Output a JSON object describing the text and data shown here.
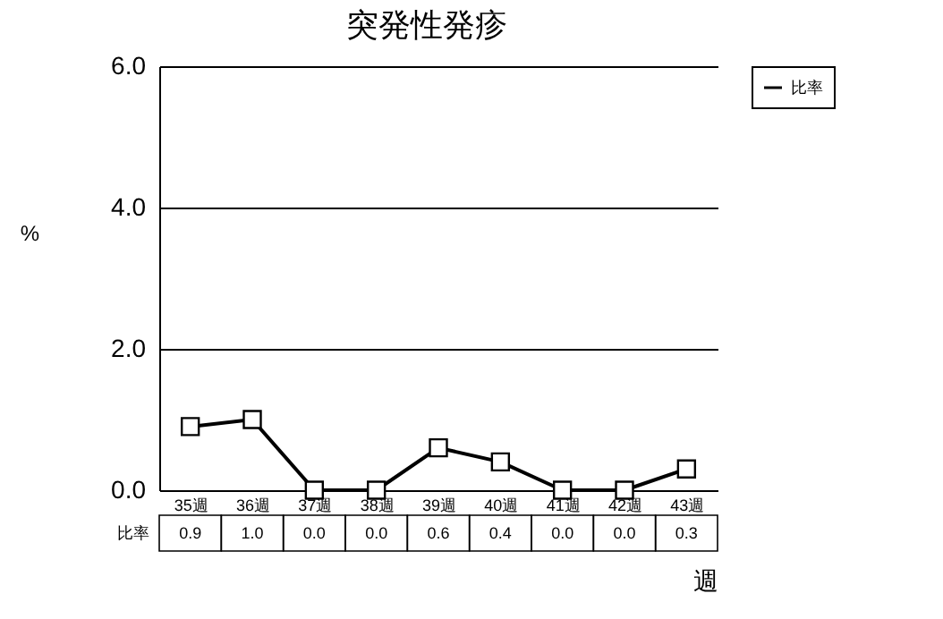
{
  "chart_data": {
    "type": "line",
    "title": "突発性発疹",
    "ylabel": "%",
    "xlabel": "週",
    "categories": [
      "35週",
      "36週",
      "37週",
      "38週",
      "39週",
      "40週",
      "41週",
      "42週",
      "43週"
    ],
    "series": [
      {
        "name": "比率",
        "color": "#000000",
        "values": [
          0.9,
          1.0,
          0.0,
          0.0,
          0.6,
          0.4,
          0.0,
          0.0,
          0.3
        ],
        "value_labels": [
          "0.9",
          "1.0",
          "0.0",
          "0.0",
          "0.6",
          "0.4",
          "0.0",
          "0.0",
          "0.3"
        ]
      }
    ],
    "ylim": [
      0,
      6
    ],
    "yticks": [
      {
        "value": 0,
        "label": "0.0"
      },
      {
        "value": 2,
        "label": "2.0"
      },
      {
        "value": 4,
        "label": "4.0"
      },
      {
        "value": 6,
        "label": "6.0"
      }
    ],
    "grid": "y",
    "legend": "top right",
    "marker": "square",
    "line_style": "solid"
  }
}
